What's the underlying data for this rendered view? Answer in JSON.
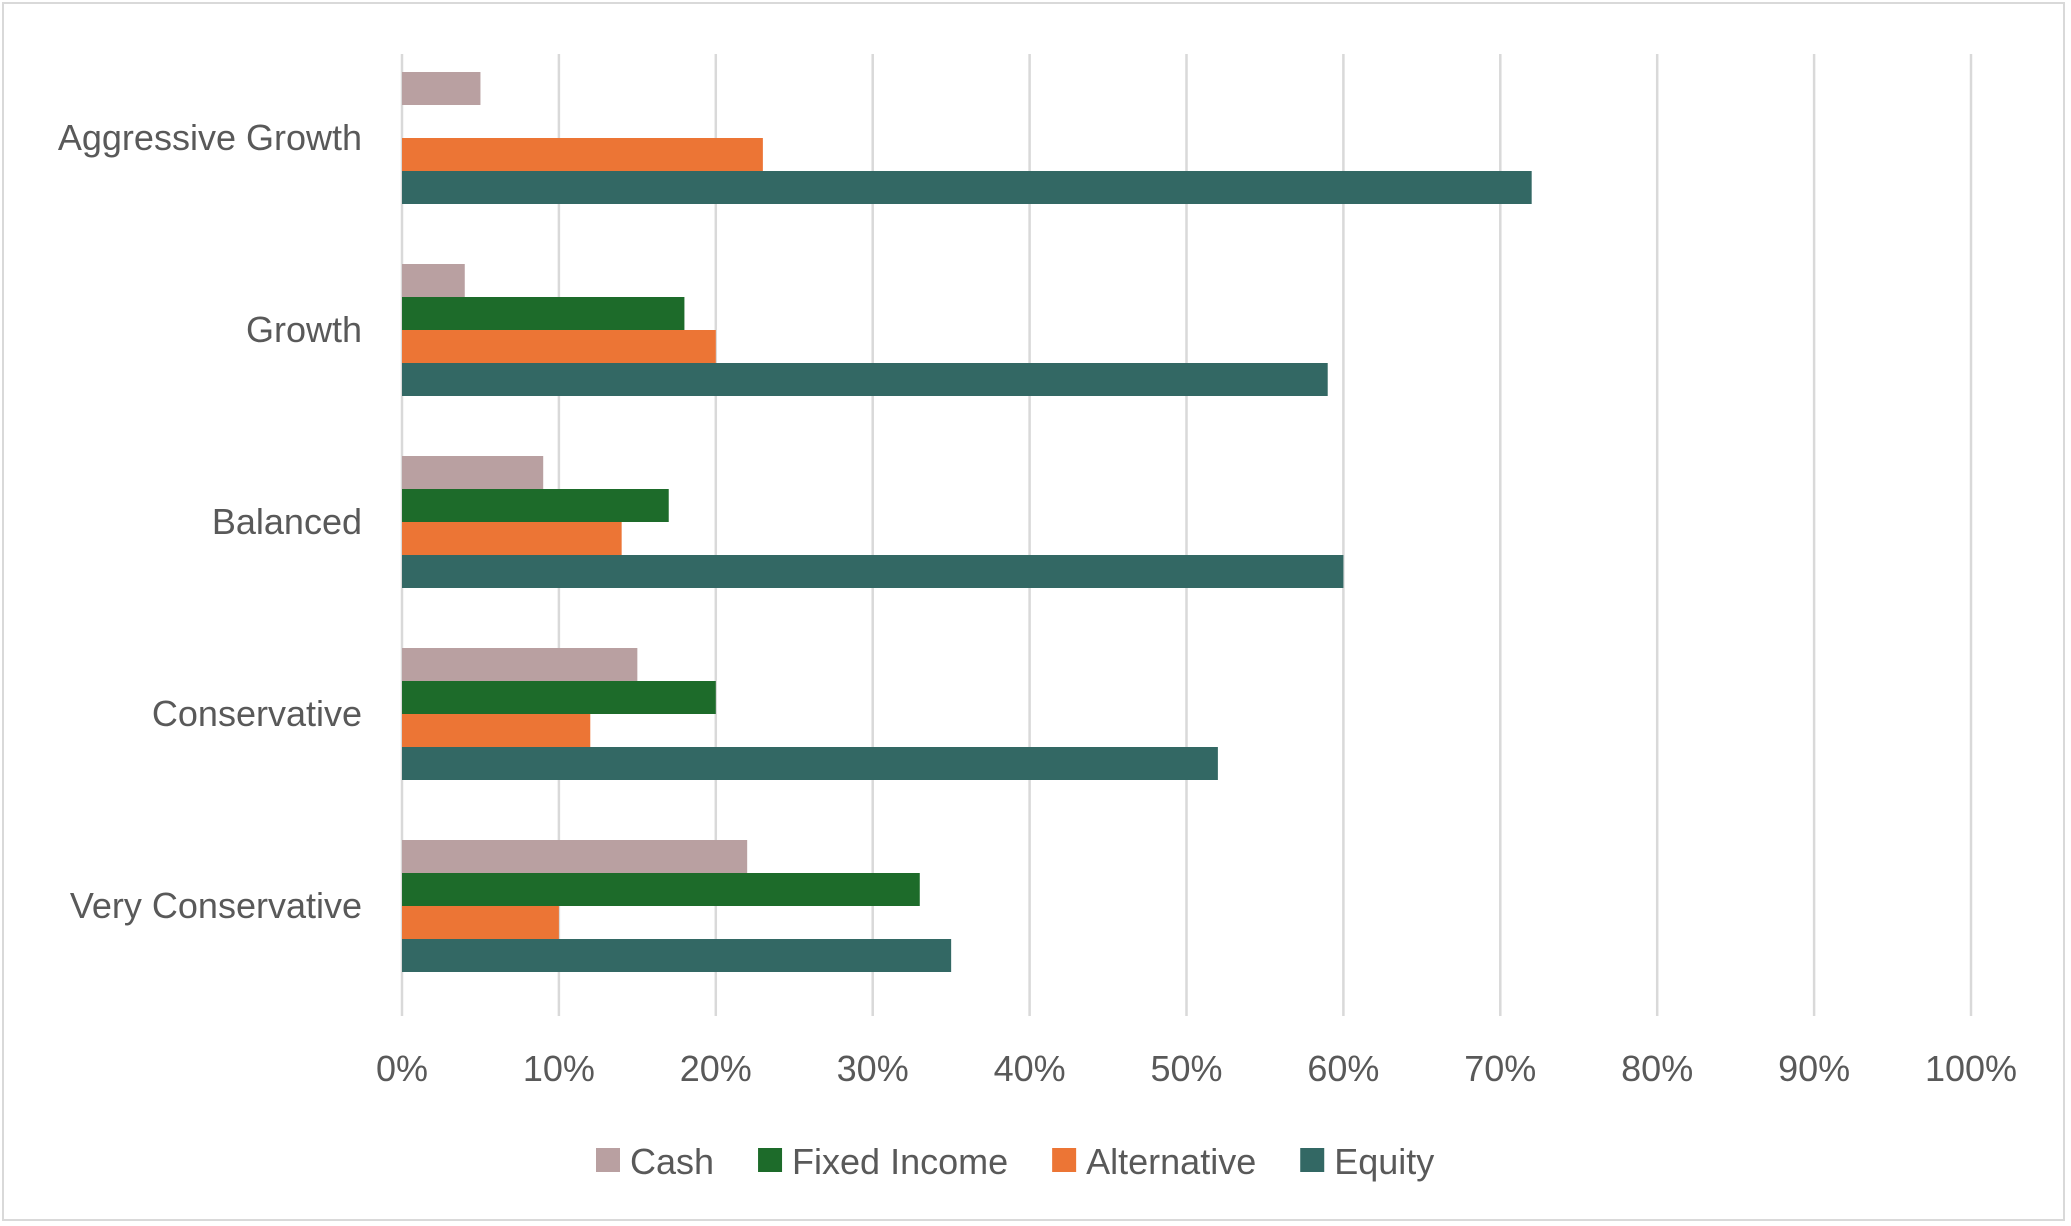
{
  "chart_data": {
    "type": "bar",
    "orientation": "horizontal",
    "title": "",
    "xlabel": "",
    "ylabel": "",
    "xlim": [
      0,
      1
    ],
    "x_ticks": [
      "0%",
      "10%",
      "20%",
      "30%",
      "40%",
      "50%",
      "60%",
      "70%",
      "80%",
      "90%",
      "100%"
    ],
    "grid": "vertical",
    "legend_position": "bottom",
    "categories": [
      "Aggressive Growth",
      "Growth",
      "Balanced",
      "Conservative",
      "Very Conservative"
    ],
    "series": [
      {
        "name": "Cash",
        "color": "#b9a0a1",
        "values": [
          0.05,
          0.04,
          0.09,
          0.15,
          0.22
        ]
      },
      {
        "name": "Fixed Income",
        "color": "#1d6b2a",
        "values": [
          0.0,
          0.18,
          0.17,
          0.2,
          0.33
        ]
      },
      {
        "name": "Alternative",
        "color": "#ec7535",
        "values": [
          0.23,
          0.2,
          0.14,
          0.12,
          0.1
        ]
      },
      {
        "name": "Equity",
        "color": "#336864",
        "values": [
          0.72,
          0.59,
          0.6,
          0.52,
          0.35
        ]
      }
    ]
  }
}
